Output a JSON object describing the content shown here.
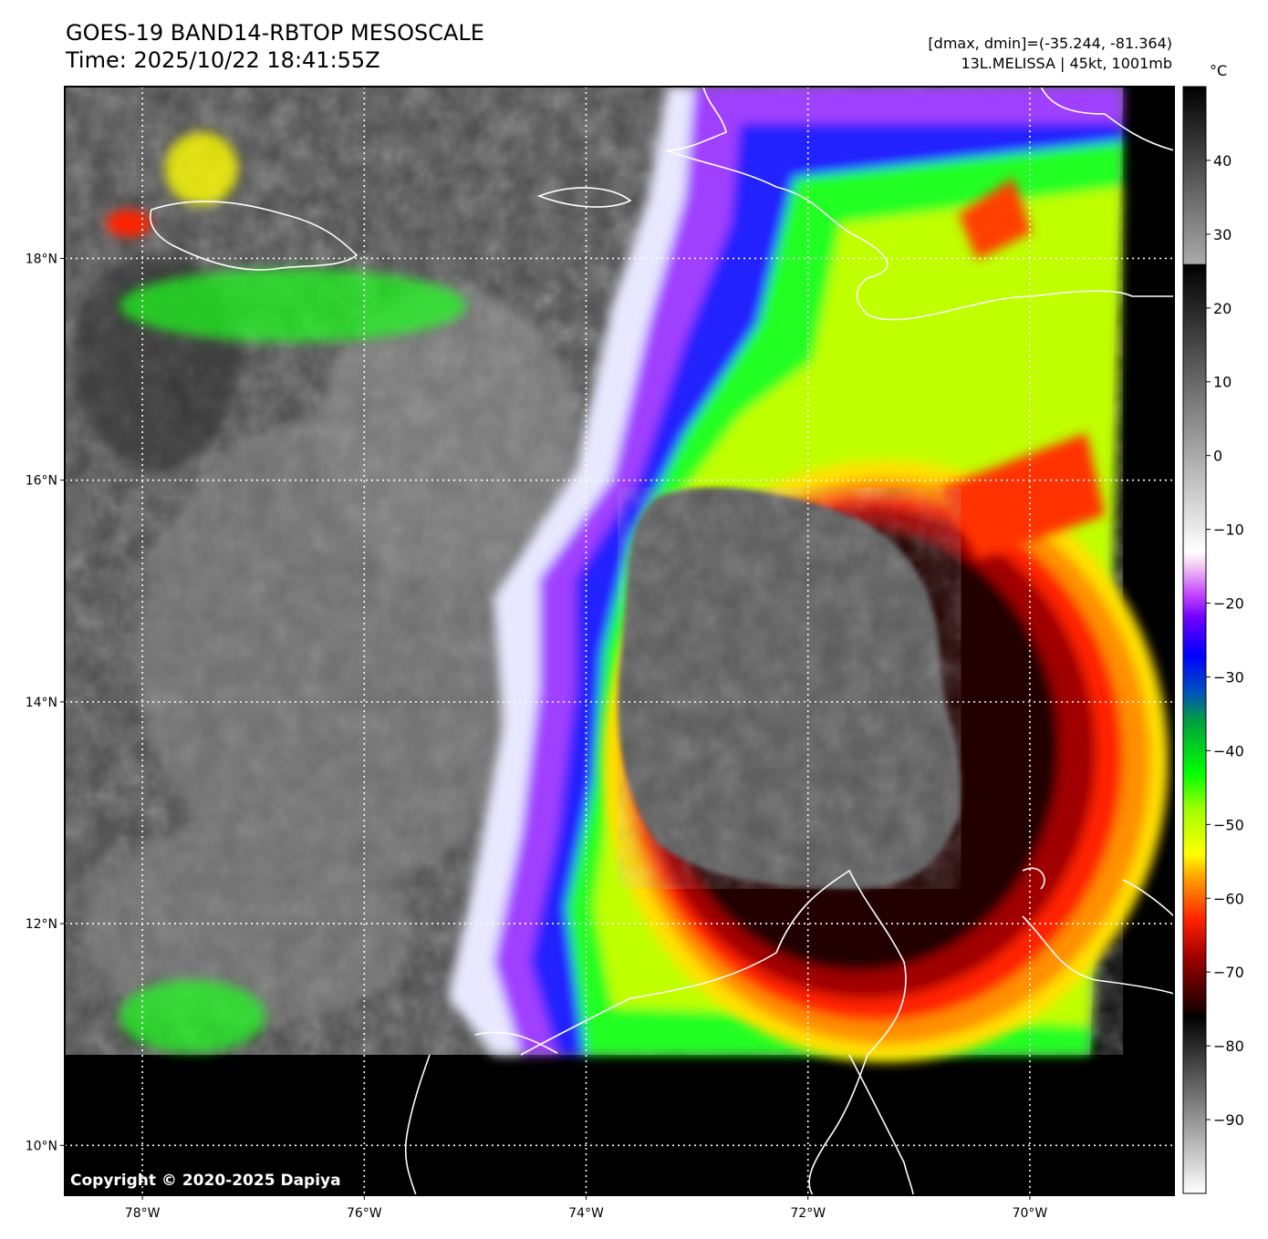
{
  "title": {
    "line1": "GOES-19 BAND14-RBTOP MESOSCALE",
    "line2": "Time: 2025/10/22 18:41:55Z"
  },
  "info": {
    "line1": "[dmax, dmin]=(-35.244, -81.364)",
    "line2": "13L.MELISSA | 45kt, 1001mb"
  },
  "copyright": "Copyright © 2020-2025 Dapiya",
  "map": {
    "lon_range": [
      -78.7,
      -68.7
    ],
    "lat_range": [
      9.55,
      19.55
    ],
    "lon_ticks": [
      {
        "value": -78,
        "label": "78°W"
      },
      {
        "value": -76,
        "label": "76°W"
      },
      {
        "value": -74,
        "label": "74°W"
      },
      {
        "value": -72,
        "label": "72°W"
      },
      {
        "value": -70,
        "label": "70°W"
      }
    ],
    "lat_ticks": [
      {
        "value": 18,
        "label": "18°N"
      },
      {
        "value": 16,
        "label": "16°N"
      },
      {
        "value": 14,
        "label": "14°N"
      },
      {
        "value": 12,
        "label": "12°N"
      },
      {
        "value": 10,
        "label": "10°N"
      }
    ],
    "gridlines": true,
    "coastline_color": "#ffffff"
  },
  "colorbar": {
    "unit": "°C",
    "range": [
      -100,
      50
    ],
    "ticks": [
      {
        "value": 40,
        "label": "40"
      },
      {
        "value": 30,
        "label": "30"
      },
      {
        "value": 20,
        "label": "20"
      },
      {
        "value": 10,
        "label": "10"
      },
      {
        "value": 0,
        "label": "0"
      },
      {
        "value": -10,
        "label": "−10"
      },
      {
        "value": -20,
        "label": "−20"
      },
      {
        "value": -30,
        "label": "−30"
      },
      {
        "value": -40,
        "label": "−40"
      },
      {
        "value": -50,
        "label": "−50"
      },
      {
        "value": -60,
        "label": "−60"
      },
      {
        "value": -70,
        "label": "−70"
      },
      {
        "value": -80,
        "label": "−80"
      },
      {
        "value": -90,
        "label": "−90"
      }
    ],
    "stops": [
      {
        "value": 50,
        "color": "#000000"
      },
      {
        "value": 26,
        "color": "#aaaaaa"
      },
      {
        "value": 25.9,
        "color": "#000000"
      },
      {
        "value": -13,
        "color": "#ffffff"
      },
      {
        "value": -15,
        "color": "#f2c8f2"
      },
      {
        "value": -19,
        "color": "#c040ff"
      },
      {
        "value": -22,
        "color": "#7000ff"
      },
      {
        "value": -27,
        "color": "#0000ff"
      },
      {
        "value": -32,
        "color": "#0050c0"
      },
      {
        "value": -36,
        "color": "#00a040"
      },
      {
        "value": -43,
        "color": "#00ff00"
      },
      {
        "value": -48,
        "color": "#a0ff00"
      },
      {
        "value": -54,
        "color": "#ffff00"
      },
      {
        "value": -57,
        "color": "#ffa500"
      },
      {
        "value": -63,
        "color": "#ff2000"
      },
      {
        "value": -68,
        "color": "#a00000"
      },
      {
        "value": -75,
        "color": "#200000"
      },
      {
        "value": -76,
        "color": "#000000"
      },
      {
        "value": -100,
        "color": "#ffffff"
      }
    ]
  }
}
